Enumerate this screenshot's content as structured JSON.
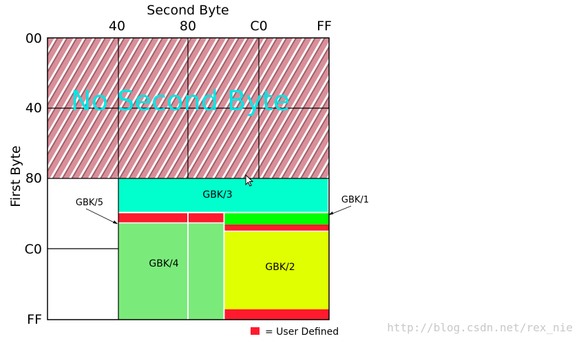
{
  "diagram": {
    "x_title": "Second Byte",
    "y_title": "First Byte",
    "x_ticks": [
      "40",
      "80",
      "C0",
      "FF"
    ],
    "y_ticks": [
      "00",
      "40",
      "80",
      "C0",
      "FF"
    ],
    "no_second_byte": "No Second Byte",
    "regions": {
      "gbk3": "GBK/3",
      "gbk4": "GBK/4",
      "gbk2": "GBK/2"
    },
    "callouts": {
      "gbk5": "GBK/5",
      "gbk1": "GBK/1"
    },
    "legend": "= User Defined",
    "watermark": "http://blog.csdn.net/rex_nie",
    "colors": {
      "hatch_base": "#d98f9a",
      "hatch_stripe": "#ffffff",
      "gbk3": "#00ffcc",
      "gbk4": "#7aeb7a",
      "gbk2": "#e0ff00",
      "gbk1_strip": "#00ff00",
      "user_defined": "#ff1a2e"
    }
  }
}
